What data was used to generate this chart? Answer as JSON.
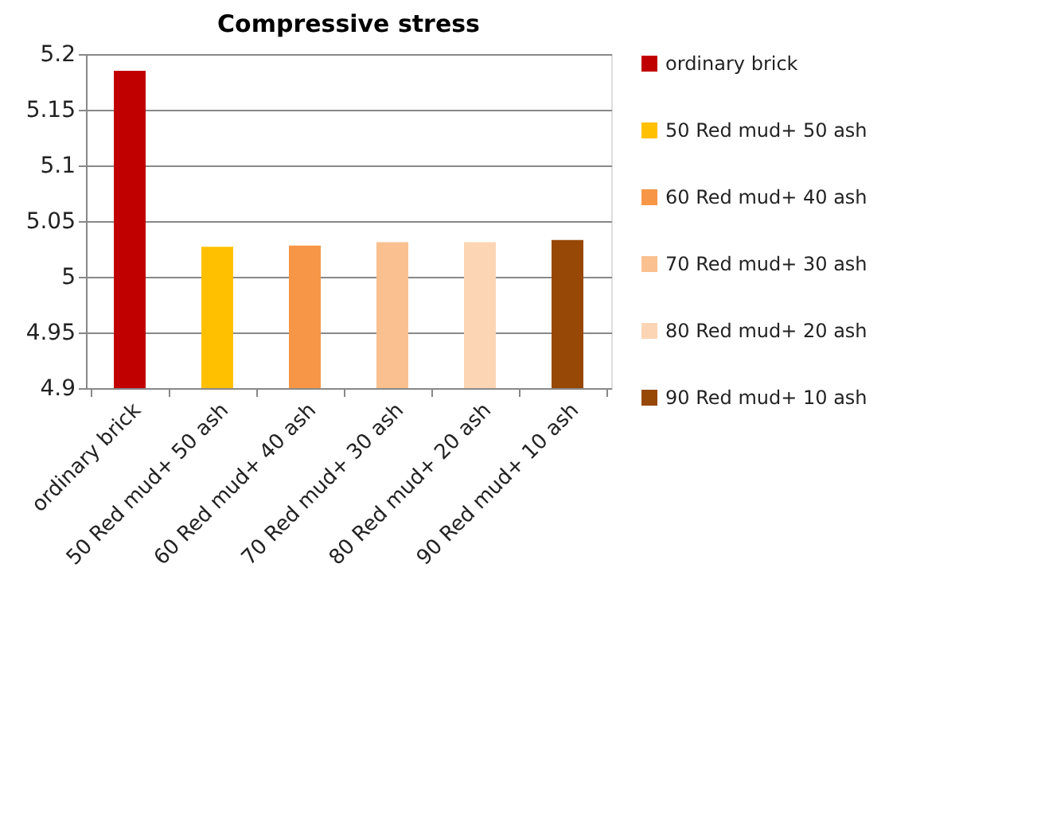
{
  "chart_data": {
    "type": "bar",
    "title": "Compressive stress",
    "categories": [
      "ordinary brick",
      "50 Red mud+ 50 ash",
      "60 Red mud+ 40 ash",
      "70 Red mud+ 30 ash",
      "80 Red mud+ 20 ash",
      "90 Red mud+ 10 ash"
    ],
    "series": [
      {
        "name": "ordinary brick",
        "color": "#c00000",
        "values": [
          5.185,
          null,
          null,
          null,
          null,
          null
        ]
      },
      {
        "name": "50 Red mud+ 50 ash",
        "color": "#ffc000",
        "values": [
          null,
          5.027,
          null,
          null,
          null,
          null
        ]
      },
      {
        "name": "60 Red mud+ 40 ash",
        "color": "#f79646",
        "values": [
          null,
          null,
          5.028,
          null,
          null,
          null
        ]
      },
      {
        "name": "70 Red mud+ 30 ash",
        "color": "#fac090",
        "values": [
          null,
          null,
          null,
          5.031,
          null,
          null
        ]
      },
      {
        "name": "80 Red mud+ 20 ash",
        "color": "#fcd5b5",
        "values": [
          null,
          null,
          null,
          null,
          5.031,
          null
        ]
      },
      {
        "name": "90 Red mud+ 10 ash",
        "color": "#974706",
        "values": [
          null,
          null,
          null,
          null,
          null,
          5.033
        ]
      }
    ],
    "ylim": [
      4.9,
      5.2
    ],
    "yticks": [
      4.9,
      4.95,
      5,
      5.05,
      5.1,
      5.15,
      5.2
    ],
    "grid": "y",
    "legend": "right"
  }
}
